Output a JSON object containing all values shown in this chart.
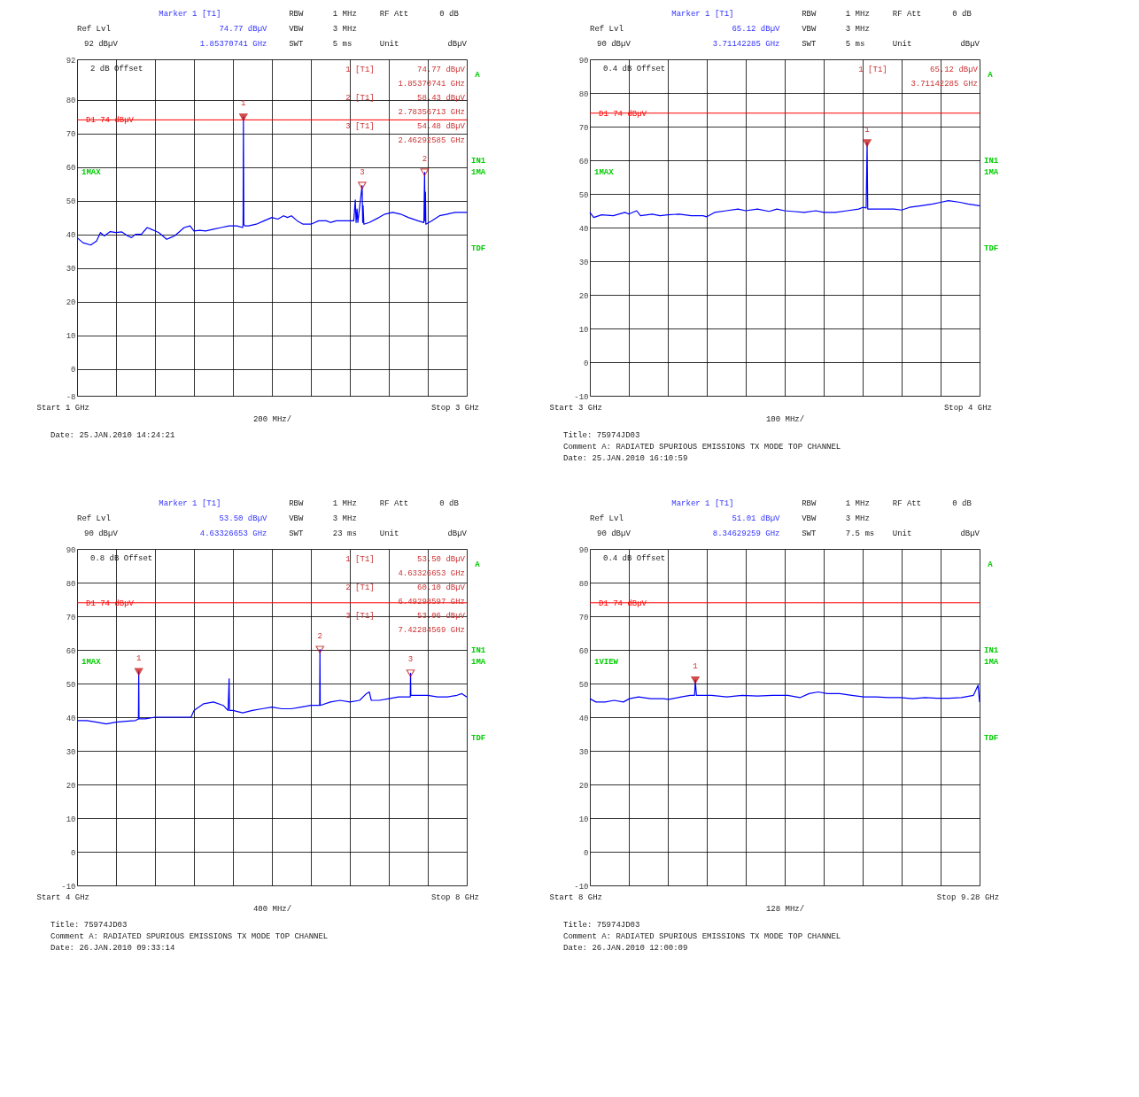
{
  "chart_data": [
    {
      "type": "line",
      "xlim": [
        1,
        3
      ],
      "xlabel": "200 MHz/",
      "xticks": [
        {
          "value": 1,
          "label": "1 GHz"
        },
        {
          "value": 1.2,
          "label": null
        },
        {
          "value": 1.4,
          "label": null
        },
        {
          "value": 1.6,
          "label": null
        },
        {
          "value": 1.8,
          "label": null
        },
        {
          "value": 2,
          "label": null
        },
        {
          "value": 2.2,
          "label": null
        },
        {
          "value": 2.4,
          "label": null
        },
        {
          "value": 2.6,
          "label": null
        },
        {
          "value": 2.8,
          "label": null
        },
        {
          "value": 3,
          "label": "3 GHz"
        }
      ],
      "ylim": [
        -8,
        92
      ],
      "yticks": [
        -8,
        0,
        10,
        20,
        30,
        40,
        50,
        60,
        70,
        80,
        92
      ],
      "grid": true,
      "series": [
        {
          "type": "line",
          "color": "#0000ff",
          "x": [
            1.0,
            1.03,
            1.07,
            1.1,
            1.12,
            1.14,
            1.17,
            1.2,
            1.23,
            1.26,
            1.28,
            1.3,
            1.33,
            1.36,
            1.38,
            1.4,
            1.42,
            1.44,
            1.46,
            1.48,
            1.5,
            1.52,
            1.55,
            1.58,
            1.6,
            1.63,
            1.66,
            1.7,
            1.74,
            1.78,
            1.82,
            1.85,
            1.852,
            1.85370741,
            1.856,
            1.86,
            1.88,
            1.92,
            1.96,
            2.0,
            2.03,
            2.06,
            2.08,
            2.1,
            2.13,
            2.16,
            2.2,
            2.24,
            2.28,
            2.3,
            2.33,
            2.38,
            2.42,
            2.428,
            2.432,
            2.437,
            2.441,
            2.46292585,
            2.466,
            2.468,
            2.472,
            2.5,
            2.55,
            2.58,
            2.62,
            2.66,
            2.7,
            2.75,
            2.78,
            2.78356713,
            2.786,
            2.788,
            2.79,
            2.82,
            2.86,
            2.9,
            2.94,
            2.97,
            3.0
          ],
          "values": [
            39,
            37.5,
            36.8,
            38,
            40.5,
            39.5,
            40.8,
            40.5,
            40.7,
            39.5,
            39,
            40,
            40,
            42,
            41.5,
            41,
            40.5,
            39.5,
            38.5,
            39,
            39.5,
            40.5,
            42,
            42.5,
            41,
            41.2,
            41,
            41.5,
            42,
            42.5,
            42.5,
            42,
            43,
            74.77,
            43,
            42.5,
            42.5,
            43,
            44,
            45,
            44.5,
            45.5,
            45,
            45.5,
            44,
            43,
            43,
            44,
            44,
            43.5,
            44,
            44,
            44,
            50.2,
            43.5,
            47.5,
            43.5,
            54.48,
            43.5,
            48.5,
            43,
            43.5,
            45,
            46,
            46.5,
            46,
            45,
            44,
            43.5,
            58.43,
            44,
            52.5,
            43,
            44,
            45.5,
            46,
            46.5,
            46.5,
            46.5
          ]
        },
        {
          "type": "scatter",
          "color": "#c00000",
          "marker": "triangle",
          "x": [
            1.85370741,
            2.78356713,
            2.46292585
          ],
          "values": [
            74.77,
            58.43,
            54.48
          ]
        }
      ],
      "ref_lines": [
        {
          "axis": "y",
          "value": 74,
          "label": "D1 74 dBµV",
          "color": "#ff0000"
        }
      ],
      "annotations": [
        "Marker 1 [T1]",
        "RBW",
        "1 MHz",
        "RF Att",
        "0 dB",
        "Ref Lvl",
        "74.77 dBµV",
        "VBW",
        "3 MHz",
        "92 dBµV",
        "1.85370741 GHz",
        "SWT",
        "5 ms",
        "Unit",
        "dBµV",
        "2 dB Offset",
        "A",
        "1MAX",
        "IN1",
        "1MA",
        "TDF",
        "Start",
        "Stop",
        "1 [T1]",
        "74.77 dBµV",
        "1.85370741 GHz",
        "2 [T1]",
        "58.43 dBµV",
        "2.78356713 GHz",
        "3 [T1]",
        "54.48 dBµV",
        "2.46292585 GHz",
        {
          "text": "1",
          "x": 1.85370741,
          "y": 74.77
        },
        {
          "text": "2",
          "x": 2.78356713,
          "y": 58.43
        },
        {
          "text": "3",
          "x": 2.46292585,
          "y": 54.48
        }
      ],
      "subtitle": [
        "Date: 25.JAN.2010 14:24:21"
      ]
    },
    {
      "type": "line",
      "xlim": [
        3,
        4
      ],
      "xlabel": "100 MHz/",
      "xticks": [
        {
          "value": 3,
          "label": "3 GHz"
        },
        {
          "value": 3.1,
          "label": null
        },
        {
          "value": 3.2,
          "label": null
        },
        {
          "value": 3.3,
          "label": null
        },
        {
          "value": 3.4,
          "label": null
        },
        {
          "value": 3.5,
          "label": null
        },
        {
          "value": 3.6,
          "label": null
        },
        {
          "value": 3.7,
          "label": null
        },
        {
          "value": 3.8,
          "label": null
        },
        {
          "value": 3.9,
          "label": null
        },
        {
          "value": 4,
          "label": "4 GHz"
        }
      ],
      "ylim": [
        -10,
        90
      ],
      "yticks": [
        -10,
        0,
        10,
        20,
        30,
        40,
        50,
        60,
        70,
        80,
        90
      ],
      "grid": true,
      "series": [
        {
          "type": "line",
          "color": "#0000ff",
          "x": [
            3.0,
            3.01,
            3.03,
            3.06,
            3.09,
            3.1,
            3.12,
            3.13,
            3.16,
            3.18,
            3.2,
            3.23,
            3.26,
            3.29,
            3.3,
            3.32,
            3.35,
            3.38,
            3.4,
            3.43,
            3.46,
            3.48,
            3.5,
            3.52,
            3.55,
            3.58,
            3.6,
            3.63,
            3.66,
            3.69,
            3.7,
            3.709,
            3.71142285,
            3.713,
            3.72,
            3.75,
            3.78,
            3.8,
            3.82,
            3.85,
            3.88,
            3.9,
            3.92,
            3.95,
            3.97,
            4.0
          ],
          "values": [
            44.5,
            43,
            43.8,
            43.5,
            44.5,
            44,
            45,
            43.5,
            44,
            43.5,
            43.8,
            44,
            43.5,
            43.5,
            43.2,
            44.5,
            45,
            45.5,
            45,
            45.5,
            44.8,
            45.5,
            45,
            44.8,
            44.5,
            45,
            44.5,
            44.5,
            45,
            45.5,
            46,
            45.8,
            65.12,
            45.5,
            45.5,
            45.5,
            45.5,
            45.2,
            46,
            46.5,
            47,
            47.5,
            48,
            47.5,
            47,
            46.5
          ]
        },
        {
          "type": "scatter",
          "color": "#c00000",
          "marker": "triangle",
          "x": [
            3.71142285
          ],
          "values": [
            65.12
          ]
        }
      ],
      "ref_lines": [
        {
          "axis": "y",
          "value": 74,
          "label": "D1 74 dBµV",
          "color": "#ff0000"
        }
      ],
      "annotations": [
        "Marker 1 [T1]",
        "RBW",
        "1 MHz",
        "RF Att",
        "0 dB",
        "Ref Lvl",
        "65.12 dBµV",
        "VBW",
        "3 MHz",
        "90 dBµV",
        "3.71142285 GHz",
        "SWT",
        "5 ms",
        "Unit",
        "dBµV",
        "0.4 dB Offset",
        "A",
        "1MAX",
        "IN1",
        "1MA",
        "TDF",
        "Start",
        "Stop",
        "1 [T1]",
        "65.12 dBµV",
        "3.71142285 GHz",
        {
          "text": "1",
          "x": 3.71142285,
          "y": 65.12
        }
      ],
      "subtitle": [
        "Title: 75974JD03",
        "Comment A: RADIATED SPURIOUS EMISSIONS TX MODE TOP CHANNEL",
        "Date: 25.JAN.2010 16:10:59"
      ]
    },
    {
      "type": "line",
      "xlim": [
        4,
        8
      ],
      "xlabel": "400 MHz/",
      "xticks": [
        {
          "value": 4,
          "label": "4 GHz"
        },
        {
          "value": 4.4,
          "label": null
        },
        {
          "value": 4.8,
          "label": null
        },
        {
          "value": 5.2,
          "label": null
        },
        {
          "value": 5.6,
          "label": null
        },
        {
          "value": 6,
          "label": null
        },
        {
          "value": 6.4,
          "label": null
        },
        {
          "value": 6.8,
          "label": null
        },
        {
          "value": 7.2,
          "label": null
        },
        {
          "value": 7.6,
          "label": null
        },
        {
          "value": 8,
          "label": "8 GHz"
        }
      ],
      "ylim": [
        -10,
        90
      ],
      "yticks": [
        -10,
        0,
        10,
        20,
        30,
        40,
        50,
        60,
        70,
        80,
        90
      ],
      "grid": true,
      "series": [
        {
          "type": "line",
          "color": "#0000ff",
          "x": [
            4.0,
            4.1,
            4.2,
            4.3,
            4.4,
            4.5,
            4.6,
            4.63,
            4.63326653,
            4.636,
            4.7,
            4.8,
            4.9,
            5.0,
            5.17,
            5.2,
            5.3,
            5.4,
            5.5,
            5.55,
            5.561,
            5.565,
            5.6,
            5.7,
            5.8,
            5.9,
            6.0,
            6.1,
            6.2,
            6.3,
            6.4,
            6.49,
            6.49298597,
            6.496,
            6.6,
            6.7,
            6.8,
            6.9,
            6.97,
            7.0,
            7.02,
            7.1,
            7.2,
            7.3,
            7.42,
            7.42284569,
            7.426,
            7.5,
            7.6,
            7.7,
            7.8,
            7.9,
            7.95,
            8.0
          ],
          "values": [
            39,
            39,
            38.5,
            38,
            38.5,
            38.8,
            39,
            39.5,
            53.5,
            39.5,
            39.5,
            40,
            40,
            40,
            40,
            42,
            44,
            44.5,
            43.5,
            42,
            51.4,
            42,
            42,
            41.3,
            42,
            42.5,
            43,
            42.5,
            42.5,
            43,
            43.5,
            43.5,
            60.1,
            43.5,
            44.5,
            45,
            44.5,
            45,
            47,
            47.5,
            45,
            45,
            45.5,
            46,
            46,
            53.06,
            46.5,
            46.5,
            46.5,
            46,
            46,
            46.5,
            47,
            46
          ]
        },
        {
          "type": "scatter",
          "color": "#c00000",
          "marker": "triangle",
          "x": [
            4.63326653,
            6.49298597,
            7.42284569
          ],
          "values": [
            53.5,
            60.1,
            53.06
          ]
        }
      ],
      "ref_lines": [
        {
          "axis": "y",
          "value": 74,
          "label": "D1 74 dBµV",
          "color": "#ff0000"
        }
      ],
      "annotations": [
        "Marker 1 [T1]",
        "RBW",
        "1 MHz",
        "RF Att",
        "0 dB",
        "Ref Lvl",
        "53.50 dBµV",
        "VBW",
        "3 MHz",
        "90 dBµV",
        "4.63326653 GHz",
        "SWT",
        "23 ms",
        "Unit",
        "dBµV",
        "0.8 dB Offset",
        "A",
        "1MAX",
        "IN1",
        "1MA",
        "TDF",
        "Start",
        "Stop",
        "1 [T1]",
        "53.50 dBµV",
        "4.63326653 GHz",
        "2 [T1]",
        "60.10 dBµV",
        "6.49298597 GHz",
        "3 [T1]",
        "53.06 dBµV",
        "7.42284569 GHz",
        {
          "text": "1",
          "x": 4.63326653,
          "y": 53.5
        },
        {
          "text": "2",
          "x": 6.49298597,
          "y": 60.1
        },
        {
          "text": "3",
          "x": 7.42284569,
          "y": 53.06
        }
      ],
      "subtitle": [
        "Title: 75974JD03",
        "Comment A: RADIATED SPURIOUS EMISSIONS TX MODE TOP CHANNEL",
        "Date: 26.JAN.2010 09:33:14"
      ]
    },
    {
      "type": "line",
      "xlim": [
        8,
        9.28
      ],
      "xlabel": "128 MHz/",
      "xticks": [
        {
          "value": 8,
          "label": "8 GHz"
        },
        {
          "value": 8.128,
          "label": null
        },
        {
          "value": 8.256,
          "label": null
        },
        {
          "value": 8.384,
          "label": null
        },
        {
          "value": 8.512,
          "label": null
        },
        {
          "value": 8.64,
          "label": null
        },
        {
          "value": 8.768,
          "label": null
        },
        {
          "value": 8.896,
          "label": null
        },
        {
          "value": 9.024,
          "label": null
        },
        {
          "value": 9.152,
          "label": null
        },
        {
          "value": 9.28,
          "label": "9.28 GHz"
        }
      ],
      "ylim": [
        -10,
        90
      ],
      "yticks": [
        -10,
        0,
        10,
        20,
        30,
        40,
        50,
        60,
        70,
        80,
        90
      ],
      "grid": true,
      "series": [
        {
          "type": "line",
          "color": "#0000ff",
          "x": [
            8.0,
            8.02,
            8.05,
            8.08,
            8.11,
            8.13,
            8.16,
            8.2,
            8.24,
            8.26,
            8.3,
            8.33,
            8.344,
            8.34629259,
            8.35,
            8.4,
            8.45,
            8.5,
            8.55,
            8.6,
            8.65,
            8.69,
            8.72,
            8.75,
            8.78,
            8.82,
            8.86,
            8.9,
            8.94,
            8.98,
            9.02,
            9.06,
            9.1,
            9.14,
            9.18,
            9.22,
            9.26,
            9.275,
            9.28
          ],
          "values": [
            45.5,
            44.5,
            44.5,
            45,
            44.5,
            45.5,
            46,
            45.5,
            45.5,
            45.3,
            46,
            46.5,
            46.5,
            51.01,
            46.5,
            46.5,
            46,
            46.5,
            46.3,
            46.5,
            46.5,
            45.8,
            47,
            47.5,
            47,
            47,
            46.5,
            46,
            46,
            45.8,
            45.8,
            45.5,
            45.8,
            45.6,
            45.6,
            45.8,
            46.5,
            49.5,
            44.5
          ]
        },
        {
          "type": "scatter",
          "color": "#c00000",
          "marker": "triangle",
          "x": [
            8.34629259
          ],
          "values": [
            51.01
          ]
        }
      ],
      "ref_lines": [
        {
          "axis": "y",
          "value": 74,
          "label": "D1 74 dBµV",
          "color": "#ff0000"
        }
      ],
      "annotations": [
        "Marker 1 [T1]",
        "RBW",
        "1 MHz",
        "RF Att",
        "0 dB",
        "Ref Lvl",
        "51.01 dBµV",
        "VBW",
        "3 MHz",
        "90 dBµV",
        "8.34629259 GHz",
        "SWT",
        "7.5 ms",
        "Unit",
        "dBµV",
        "0.4 dB Offset",
        "A",
        "1VIEW",
        "IN1",
        "1MA",
        "TDF",
        "Start",
        "Stop",
        {
          "text": "1",
          "x": 8.34629259,
          "y": 51.01
        }
      ],
      "subtitle": [
        "Title: 75974JD03",
        "Comment A: RADIATED SPURIOUS EMISSIONS TX MODE TOP CHANNEL",
        "Date: 26.JAN.2010 12:00:09"
      ]
    }
  ]
}
